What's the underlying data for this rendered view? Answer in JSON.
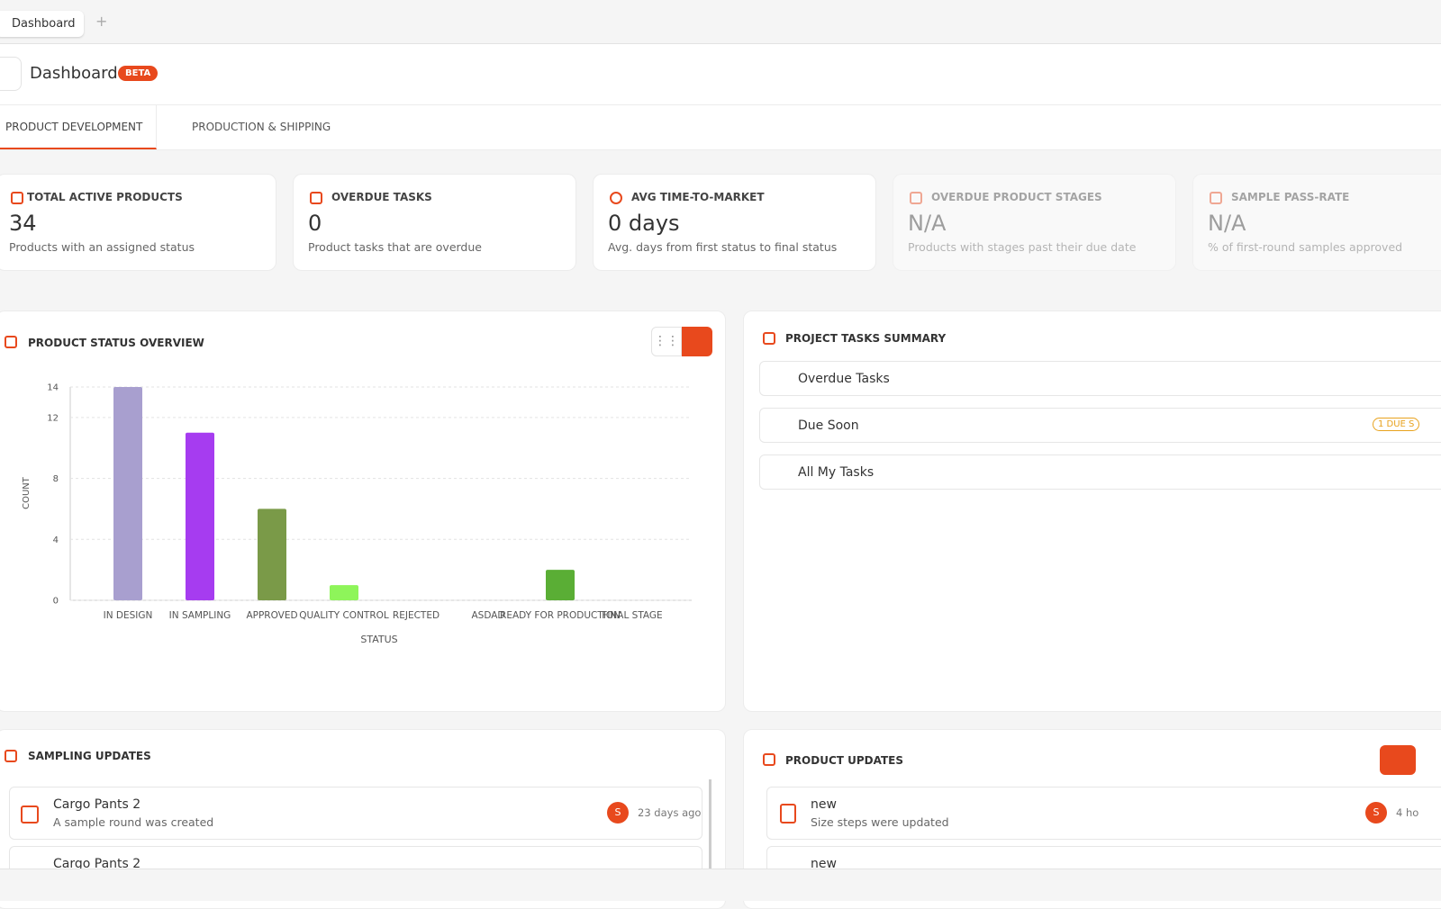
{
  "browser_tab": {
    "label": "Dashboard"
  },
  "header": {
    "title": "Dashboard",
    "badge": "BETA"
  },
  "nav_tabs": [
    "PRODUCT DEVELOPMENT",
    "PRODUCTION & SHIPPING"
  ],
  "kpis": [
    {
      "label": "TOTAL ACTIVE PRODUCTS",
      "value": "34",
      "caption": "Products with an assigned status"
    },
    {
      "label": "OVERDUE TASKS",
      "value": "0",
      "caption": "Product tasks that are overdue"
    },
    {
      "label": "AVG TIME-TO-MARKET",
      "value": "0 days",
      "caption": "Avg. days from first status to final status"
    },
    {
      "label": "OVERDUE PRODUCT STAGES",
      "value": "N/A",
      "caption": "Products with stages past their due date"
    },
    {
      "label": "SAMPLE PASS-RATE",
      "value": "N/A",
      "caption": "% of first-round samples approved"
    }
  ],
  "status_panel": {
    "title": "PRODUCT STATUS OVERVIEW"
  },
  "chart_data": {
    "type": "bar",
    "x_label": "STATUS",
    "y_label": "COUNT",
    "categories": [
      "IN DESIGN",
      "IN SAMPLING",
      "APPROVED",
      "QUALITY CONTROL",
      "REJECTED",
      "ASDAD",
      "READY FOR PRODUCTION",
      "FINAL STAGE"
    ],
    "values": [
      14,
      11,
      6,
      1,
      0,
      0,
      2,
      0
    ],
    "colors": [
      "#a89fcf",
      "#a63cf0",
      "#7a9a48",
      "#8ef55a",
      "#e05a5a",
      "#cccccc",
      "#5aae35",
      "#4a90d9"
    ],
    "ylim": [
      0,
      14
    ],
    "yticks": [
      0,
      4,
      8,
      12,
      14
    ],
    "grid": true
  },
  "tasks_panel": {
    "title": "PROJECT TASKS SUMMARY",
    "items": [
      {
        "label": "Overdue Tasks"
      },
      {
        "label": "Due Soon",
        "badge": "1 DUE S"
      },
      {
        "label": "All My Tasks"
      }
    ]
  },
  "sampling_updates": {
    "title": "SAMPLING UPDATES",
    "items": [
      {
        "name": "Cargo Pants 2",
        "description": "A sample round was created",
        "avatar": "S",
        "time": "23 days ago"
      },
      {
        "name": "Cargo Pants 2"
      }
    ]
  },
  "product_updates": {
    "title": "PRODUCT UPDATES",
    "items": [
      {
        "name": "new",
        "description": "Size steps were updated",
        "avatar": "S",
        "time": "4 ho"
      },
      {
        "name": "new"
      }
    ]
  }
}
